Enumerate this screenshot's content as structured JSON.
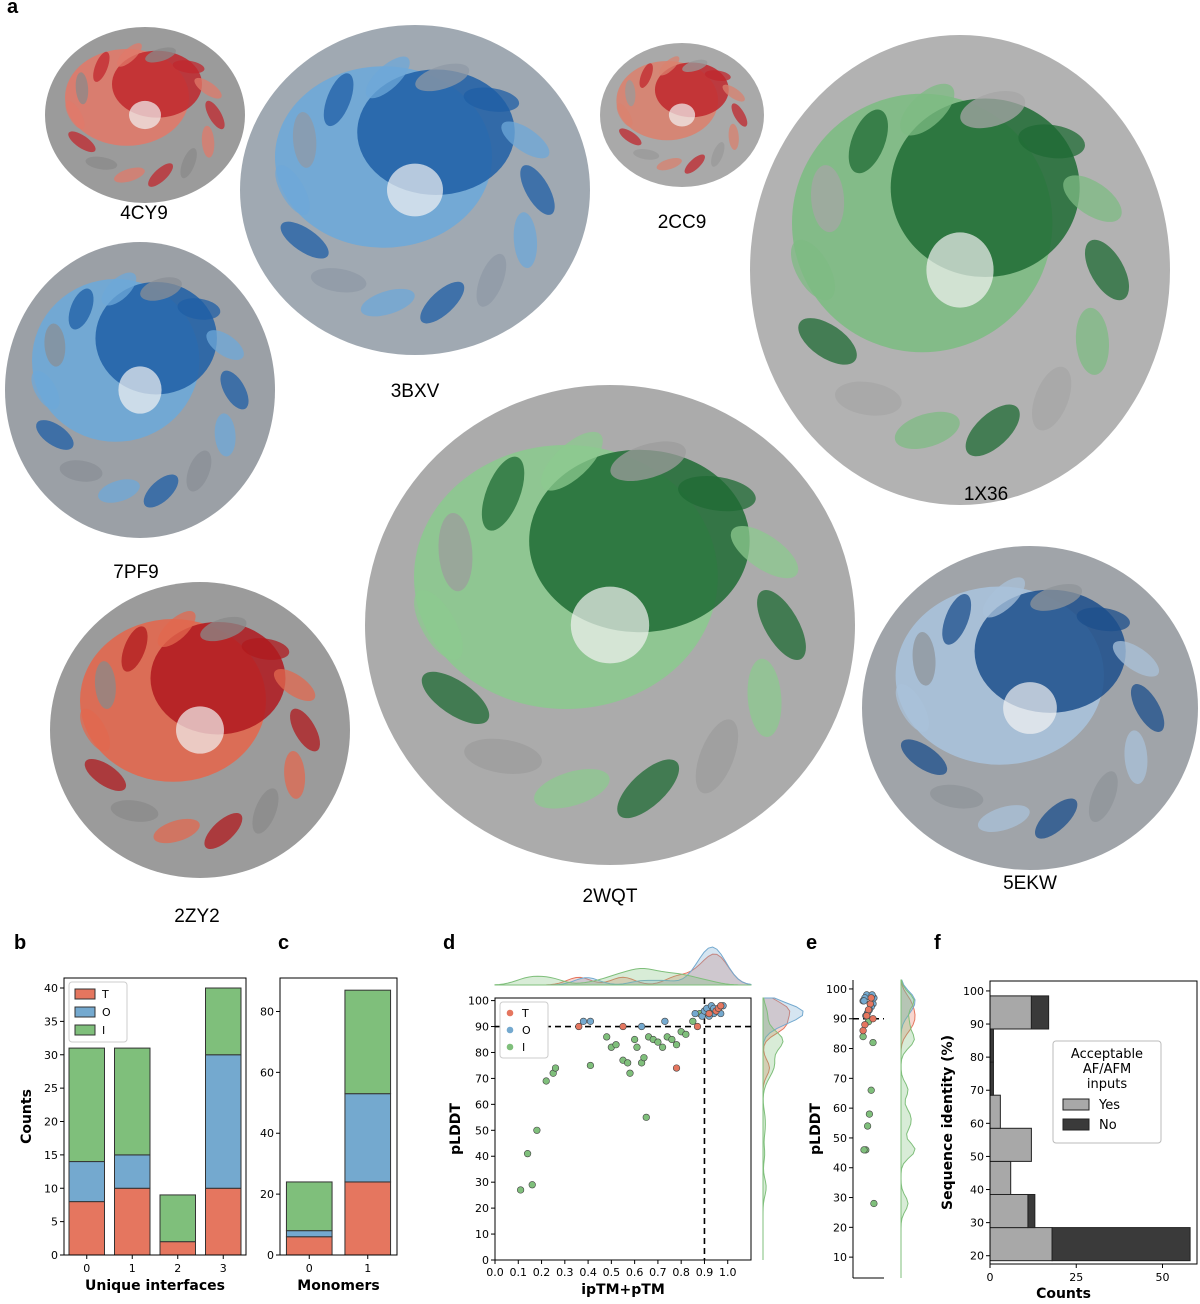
{
  "panel_letters": {
    "a": "a",
    "b": "b",
    "c": "c",
    "d": "d",
    "e": "e",
    "f": "f"
  },
  "structures": [
    {
      "id": "4CY9",
      "label": "4CY9",
      "palette": [
        "#c0272d",
        "#e07a6a",
        "#8a8a8a"
      ]
    },
    {
      "id": "3BXV",
      "label": "3BXV",
      "palette": [
        "#1f5fa6",
        "#6ea8d8",
        "#8f9aa5"
      ]
    },
    {
      "id": "2CC9",
      "label": "2CC9",
      "palette": [
        "#c0272d",
        "#d9826f",
        "#9a9a9a"
      ]
    },
    {
      "id": "1X36",
      "label": "1X36",
      "palette": [
        "#1f6b34",
        "#7dbb83",
        "#a5a5a5"
      ]
    },
    {
      "id": "7PF9",
      "label": "7PF9",
      "palette": [
        "#1f5fa6",
        "#6ea8d8",
        "#8a8f96"
      ]
    },
    {
      "id": "2WQT",
      "label": "2WQT",
      "palette": [
        "#1f6b34",
        "#8cc98f",
        "#9c9c9c"
      ]
    },
    {
      "id": "2ZY2",
      "label": "2ZY2",
      "palette": [
        "#b0191e",
        "#e2684f",
        "#8a8a8a"
      ]
    },
    {
      "id": "5EKW",
      "label": "5EKW",
      "palette": [
        "#1c4f8c",
        "#a9c2da",
        "#8f949a"
      ]
    }
  ],
  "colors": {
    "T": "#e5765f",
    "O": "#74a9cf",
    "I": "#7fbf7b",
    "yes": "#a8a8a8",
    "no": "#3a3a3a"
  },
  "chart_data": [
    {
      "panel": "b",
      "type": "bar",
      "stacked": true,
      "categories": [
        "0",
        "1",
        "2",
        "3"
      ],
      "series": [
        {
          "name": "T",
          "values": [
            8,
            10,
            2,
            10
          ]
        },
        {
          "name": "O",
          "values": [
            6,
            5,
            0,
            20
          ]
        },
        {
          "name": "I",
          "values": [
            17,
            16,
            7,
            10
          ]
        }
      ],
      "xlabel": "Unique interfaces",
      "ylabel": "Counts",
      "ylim": [
        0,
        41.5
      ],
      "yticks": [
        0,
        5,
        10,
        15,
        20,
        25,
        30,
        35,
        40
      ],
      "legend": "top-left"
    },
    {
      "panel": "c",
      "type": "bar",
      "stacked": true,
      "categories": [
        "0",
        "1"
      ],
      "series": [
        {
          "name": "T",
          "values": [
            6,
            24
          ]
        },
        {
          "name": "O",
          "values": [
            2,
            29
          ]
        },
        {
          "name": "I",
          "values": [
            16,
            34
          ]
        }
      ],
      "xlabel": "Monomers",
      "ylabel": "",
      "ylim": [
        0,
        91
      ],
      "yticks": [
        0,
        20,
        40,
        60,
        80
      ]
    },
    {
      "panel": "d",
      "type": "scatter",
      "xlabel": "ipTM+pTM",
      "ylabel": "pLDDT",
      "xlim": [
        0.0,
        1.1
      ],
      "ylim": [
        0,
        101
      ],
      "xticks": [
        "0.0",
        "0.1",
        "0.2",
        "0.3",
        "0.4",
        "0.5",
        "0.6",
        "0.7",
        "0.8",
        "0.9",
        "1.0"
      ],
      "yticks": [
        0,
        10,
        20,
        30,
        40,
        50,
        60,
        70,
        80,
        90,
        100
      ],
      "thresholds": {
        "x": 0.9,
        "y": 90
      },
      "legend": "top-left",
      "series": [
        {
          "name": "T",
          "points": [
            [
              0.36,
              90
            ],
            [
              0.55,
              90
            ],
            [
              0.78,
              74
            ],
            [
              0.87,
              90
            ],
            [
              0.92,
              95
            ],
            [
              0.95,
              96
            ],
            [
              0.96,
              97
            ],
            [
              0.97,
              98
            ]
          ]
        },
        {
          "name": "O",
          "points": [
            [
              0.38,
              92
            ],
            [
              0.41,
              92
            ],
            [
              0.63,
              90
            ],
            [
              0.73,
              92
            ],
            [
              0.86,
              95
            ],
            [
              0.89,
              94
            ],
            [
              0.9,
              96
            ],
            [
              0.91,
              97
            ],
            [
              0.93,
              98
            ],
            [
              0.94,
              95
            ],
            [
              0.95,
              96
            ],
            [
              0.96,
              97
            ],
            [
              0.97,
              95
            ],
            [
              0.98,
              98
            ],
            [
              0.92,
              94
            ],
            [
              0.94,
              97
            ]
          ]
        },
        {
          "name": "I",
          "points": [
            [
              0.11,
              27
            ],
            [
              0.14,
              41
            ],
            [
              0.16,
              29
            ],
            [
              0.18,
              50
            ],
            [
              0.22,
              69
            ],
            [
              0.25,
              72
            ],
            [
              0.26,
              74
            ],
            [
              0.41,
              75
            ],
            [
              0.48,
              86
            ],
            [
              0.5,
              82
            ],
            [
              0.52,
              83
            ],
            [
              0.55,
              77
            ],
            [
              0.57,
              76
            ],
            [
              0.58,
              72
            ],
            [
              0.6,
              85
            ],
            [
              0.61,
              82
            ],
            [
              0.63,
              76
            ],
            [
              0.64,
              78
            ],
            [
              0.65,
              55
            ],
            [
              0.66,
              86
            ],
            [
              0.68,
              85
            ],
            [
              0.7,
              84
            ],
            [
              0.72,
              82
            ],
            [
              0.74,
              86
            ],
            [
              0.76,
              85
            ],
            [
              0.78,
              83
            ],
            [
              0.8,
              88
            ],
            [
              0.82,
              87
            ],
            [
              0.85,
              92
            ],
            [
              0.88,
              95
            ],
            [
              0.93,
              96
            ]
          ]
        }
      ]
    },
    {
      "panel": "e",
      "type": "scatter",
      "xlabel": "",
      "ylabel": "pLDDT",
      "ylim": [
        3,
        103
      ],
      "yticks": [
        10,
        20,
        30,
        40,
        50,
        60,
        70,
        80,
        90,
        100
      ],
      "thresholds": {
        "y": 90
      },
      "series": [
        {
          "name": "T",
          "points": [
            [
              0,
              95
            ],
            [
              0,
              93
            ],
            [
              0,
              91
            ],
            [
              0,
              88
            ],
            [
              0,
              86
            ],
            [
              0,
              90
            ],
            [
              0,
              97
            ]
          ]
        },
        {
          "name": "O",
          "points": [
            [
              0,
              98
            ],
            [
              0,
              97
            ],
            [
              0,
              96
            ],
            [
              0,
              95
            ],
            [
              0,
              94
            ],
            [
              0,
              93
            ],
            [
              0,
              92
            ],
            [
              0,
              91
            ],
            [
              0,
              96
            ],
            [
              0,
              97
            ],
            [
              0,
              98
            ]
          ]
        },
        {
          "name": "I",
          "points": [
            [
              0,
              84
            ],
            [
              0,
              82
            ],
            [
              0,
              66
            ],
            [
              0,
              58
            ],
            [
              0,
              54
            ],
            [
              0,
              46
            ],
            [
              0,
              46
            ],
            [
              0,
              28
            ],
            [
              0,
              97
            ],
            [
              0,
              95
            ],
            [
              0,
              89
            ]
          ]
        }
      ]
    },
    {
      "panel": "f",
      "type": "bar",
      "orientation": "horizontal",
      "stacked": true,
      "xlabel": "Counts",
      "ylabel": "Sequence identity (%)",
      "xlim": [
        0,
        60
      ],
      "ylim": [
        17.5,
        103
      ],
      "xticks": [
        0,
        25,
        50
      ],
      "yticks": [
        20,
        30,
        40,
        50,
        60,
        70,
        80,
        90,
        100
      ],
      "legend_title": "Acceptable\nAF/AFM\ninputs",
      "bins": [
        [
          18.5,
          28.5
        ],
        [
          28.5,
          38.5
        ],
        [
          38.5,
          48.5
        ],
        [
          48.5,
          58.5
        ],
        [
          58.5,
          68.5
        ],
        [
          68.5,
          78.5
        ],
        [
          78.5,
          88.5
        ],
        [
          88.5,
          98.5
        ]
      ],
      "series": [
        {
          "name": "Yes",
          "values": [
            18,
            11,
            6,
            12,
            3,
            0,
            0,
            12
          ]
        },
        {
          "name": "No",
          "values": [
            40,
            2,
            0,
            0,
            0,
            1,
            1,
            5
          ]
        }
      ]
    }
  ]
}
